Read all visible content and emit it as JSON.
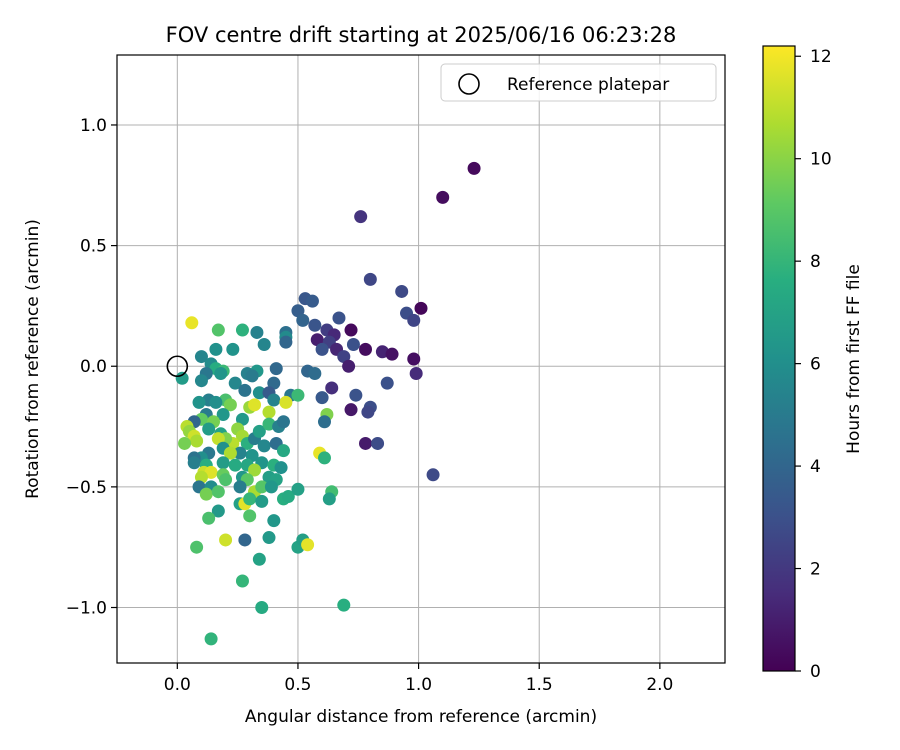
{
  "chart_data": {
    "type": "scatter",
    "title": "FOV centre drift starting at 2025/06/16 06:23:28",
    "xlabel": "Angular distance from reference (arcmin)",
    "ylabel": "Rotation from reference (arcmin)",
    "xlim": [
      -0.25,
      2.27
    ],
    "ylim": [
      -1.23,
      1.29
    ],
    "xticks": [
      0.0,
      0.5,
      1.0,
      1.5,
      2.0
    ],
    "xtick_labels": [
      "0.0",
      "0.5",
      "1.0",
      "1.5",
      "2.0"
    ],
    "yticks": [
      -1.0,
      -0.5,
      0.0,
      0.5,
      1.0
    ],
    "ytick_labels": [
      "−1.0",
      "−0.5",
      "0.0",
      "0.5",
      "1.0"
    ],
    "grid": true,
    "legend": {
      "position": "upper right",
      "entries": [
        {
          "label": "Reference platepar",
          "marker": "open-circle",
          "color": "#000000"
        }
      ]
    },
    "reference_point": {
      "x": 0.0,
      "y": 0.0
    },
    "colorbar": {
      "label": "Hours from first FF file",
      "colormap": "viridis",
      "range": [
        0,
        12.2
      ],
      "ticks": [
        0,
        2,
        4,
        6,
        8,
        10,
        12
      ],
      "tick_labels": [
        "0",
        "2",
        "4",
        "6",
        "8",
        "10",
        "12"
      ]
    },
    "points": [
      {
        "x": 1.23,
        "y": 0.82,
        "c": 0.3
      },
      {
        "x": 1.1,
        "y": 0.7,
        "c": 0.4
      },
      {
        "x": 0.76,
        "y": 0.62,
        "c": 1.8
      },
      {
        "x": 0.8,
        "y": 0.36,
        "c": 2.6
      },
      {
        "x": 0.93,
        "y": 0.31,
        "c": 2.7
      },
      {
        "x": 1.01,
        "y": 0.24,
        "c": 0.2
      },
      {
        "x": 0.95,
        "y": 0.22,
        "c": 2.9
      },
      {
        "x": 0.98,
        "y": 0.19,
        "c": 2.5
      },
      {
        "x": 0.72,
        "y": 0.15,
        "c": 0.3
      },
      {
        "x": 0.67,
        "y": 0.2,
        "c": 3.1
      },
      {
        "x": 0.53,
        "y": 0.28,
        "c": 3.3
      },
      {
        "x": 0.56,
        "y": 0.27,
        "c": 3.5
      },
      {
        "x": 0.5,
        "y": 0.23,
        "c": 3.6
      },
      {
        "x": 0.52,
        "y": 0.19,
        "c": 3.9
      },
      {
        "x": 0.57,
        "y": 0.17,
        "c": 3.2
      },
      {
        "x": 0.62,
        "y": 0.15,
        "c": 2.2
      },
      {
        "x": 0.65,
        "y": 0.13,
        "c": 1.4
      },
      {
        "x": 0.58,
        "y": 0.11,
        "c": 1.0
      },
      {
        "x": 0.63,
        "y": 0.1,
        "c": 2.3
      },
      {
        "x": 0.73,
        "y": 0.09,
        "c": 3.0
      },
      {
        "x": 0.66,
        "y": 0.07,
        "c": 1.3
      },
      {
        "x": 0.6,
        "y": 0.07,
        "c": 3.1
      },
      {
        "x": 0.69,
        "y": 0.04,
        "c": 2.4
      },
      {
        "x": 0.71,
        "y": 0.0,
        "c": 1.0
      },
      {
        "x": 0.78,
        "y": 0.07,
        "c": 0.4
      },
      {
        "x": 0.85,
        "y": 0.06,
        "c": 1.2
      },
      {
        "x": 0.89,
        "y": 0.05,
        "c": 0.6
      },
      {
        "x": 0.98,
        "y": 0.03,
        "c": 0.5
      },
      {
        "x": 0.99,
        "y": -0.03,
        "c": 1.5
      },
      {
        "x": 0.87,
        "y": -0.07,
        "c": 3.0
      },
      {
        "x": 0.64,
        "y": -0.09,
        "c": 1.6
      },
      {
        "x": 0.74,
        "y": -0.12,
        "c": 3.1
      },
      {
        "x": 0.6,
        "y": -0.13,
        "c": 3.4
      },
      {
        "x": 0.8,
        "y": -0.17,
        "c": 2.9
      },
      {
        "x": 0.72,
        "y": -0.18,
        "c": 0.8
      },
      {
        "x": 0.79,
        "y": -0.19,
        "c": 2.6
      },
      {
        "x": 0.62,
        "y": -0.2,
        "c": 9.8
      },
      {
        "x": 0.61,
        "y": -0.23,
        "c": 4.4
      },
      {
        "x": 0.78,
        "y": -0.32,
        "c": 0.9
      },
      {
        "x": 0.83,
        "y": -0.32,
        "c": 2.8
      },
      {
        "x": 1.06,
        "y": -0.45,
        "c": 2.7
      },
      {
        "x": 0.54,
        "y": -0.02,
        "c": 4.0
      },
      {
        "x": 0.57,
        "y": -0.03,
        "c": 4.3
      },
      {
        "x": 0.45,
        "y": 0.14,
        "c": 4.5
      },
      {
        "x": 0.45,
        "y": 0.12,
        "c": 5.8
      },
      {
        "x": 0.45,
        "y": 0.1,
        "c": 4.0
      },
      {
        "x": 0.36,
        "y": 0.09,
        "c": 5.5
      },
      {
        "x": 0.33,
        "y": 0.14,
        "c": 5.3
      },
      {
        "x": 0.27,
        "y": 0.15,
        "c": 7.8
      },
      {
        "x": 0.23,
        "y": 0.07,
        "c": 6.2
      },
      {
        "x": 0.17,
        "y": 0.15,
        "c": 8.8
      },
      {
        "x": 0.16,
        "y": 0.07,
        "c": 6.1
      },
      {
        "x": 0.06,
        "y": 0.18,
        "c": 11.8
      },
      {
        "x": 0.1,
        "y": 0.04,
        "c": 5.5
      },
      {
        "x": 0.14,
        "y": 0.01,
        "c": 5.8
      },
      {
        "x": 0.16,
        "y": -0.01,
        "c": 7.5
      },
      {
        "x": 0.19,
        "y": -0.02,
        "c": 8.2
      },
      {
        "x": 0.12,
        "y": -0.03,
        "c": 4.8
      },
      {
        "x": 0.18,
        "y": -0.03,
        "c": 6.3
      },
      {
        "x": 0.1,
        "y": -0.06,
        "c": 5.6
      },
      {
        "x": 0.02,
        "y": -0.05,
        "c": 6.6
      },
      {
        "x": 0.29,
        "y": -0.03,
        "c": 5.3
      },
      {
        "x": 0.33,
        "y": -0.02,
        "c": 6.4
      },
      {
        "x": 0.31,
        "y": -0.04,
        "c": 5.0
      },
      {
        "x": 0.24,
        "y": -0.07,
        "c": 5.6
      },
      {
        "x": 0.41,
        "y": -0.01,
        "c": 4.1
      },
      {
        "x": 0.4,
        "y": -0.07,
        "c": 4.2
      },
      {
        "x": 0.28,
        "y": -0.1,
        "c": 4.6
      },
      {
        "x": 0.34,
        "y": -0.11,
        "c": 6.0
      },
      {
        "x": 0.38,
        "y": -0.11,
        "c": 3.5
      },
      {
        "x": 0.47,
        "y": -0.12,
        "c": 4.8
      },
      {
        "x": 0.5,
        "y": -0.12,
        "c": 8.2
      },
      {
        "x": 0.2,
        "y": -0.14,
        "c": 8.6
      },
      {
        "x": 0.13,
        "y": -0.14,
        "c": 5.2
      },
      {
        "x": 0.09,
        "y": -0.15,
        "c": 6.2
      },
      {
        "x": 0.16,
        "y": -0.15,
        "c": 6.0
      },
      {
        "x": 0.22,
        "y": -0.16,
        "c": 9.6
      },
      {
        "x": 0.3,
        "y": -0.17,
        "c": 10.3
      },
      {
        "x": 0.4,
        "y": -0.14,
        "c": 5.4
      },
      {
        "x": 0.45,
        "y": -0.15,
        "c": 11.5
      },
      {
        "x": 0.38,
        "y": -0.19,
        "c": 10.8
      },
      {
        "x": 0.32,
        "y": -0.16,
        "c": 11.6
      },
      {
        "x": 0.27,
        "y": -0.22,
        "c": 6.5
      },
      {
        "x": 0.19,
        "y": -0.2,
        "c": 6.4
      },
      {
        "x": 0.12,
        "y": -0.2,
        "c": 5.0
      },
      {
        "x": 0.1,
        "y": -0.22,
        "c": 9.2
      },
      {
        "x": 0.15,
        "y": -0.23,
        "c": 9.6
      },
      {
        "x": 0.07,
        "y": -0.23,
        "c": 4.0
      },
      {
        "x": 0.04,
        "y": -0.25,
        "c": 10.9
      },
      {
        "x": 0.05,
        "y": -0.27,
        "c": 10.2
      },
      {
        "x": 0.07,
        "y": -0.29,
        "c": 11.3
      },
      {
        "x": 0.08,
        "y": -0.31,
        "c": 10.6
      },
      {
        "x": 0.03,
        "y": -0.32,
        "c": 9.6
      },
      {
        "x": 0.13,
        "y": -0.26,
        "c": 6.7
      },
      {
        "x": 0.18,
        "y": -0.28,
        "c": 7.0
      },
      {
        "x": 0.25,
        "y": -0.26,
        "c": 10.1
      },
      {
        "x": 0.27,
        "y": -0.29,
        "c": 10.5
      },
      {
        "x": 0.23,
        "y": -0.32,
        "c": 10.9
      },
      {
        "x": 0.2,
        "y": -0.3,
        "c": 9.8
      },
      {
        "x": 0.17,
        "y": -0.3,
        "c": 11.1
      },
      {
        "x": 0.19,
        "y": -0.34,
        "c": 6.1
      },
      {
        "x": 0.29,
        "y": -0.32,
        "c": 7.7
      },
      {
        "x": 0.32,
        "y": -0.3,
        "c": 5.1
      },
      {
        "x": 0.34,
        "y": -0.27,
        "c": 6.9
      },
      {
        "x": 0.38,
        "y": -0.24,
        "c": 8.1
      },
      {
        "x": 0.42,
        "y": -0.25,
        "c": 5.3
      },
      {
        "x": 0.44,
        "y": -0.23,
        "c": 4.7
      },
      {
        "x": 0.36,
        "y": -0.33,
        "c": 5.6
      },
      {
        "x": 0.41,
        "y": -0.32,
        "c": 4.4
      },
      {
        "x": 0.44,
        "y": -0.35,
        "c": 7.3
      },
      {
        "x": 0.31,
        "y": -0.37,
        "c": 6.2
      },
      {
        "x": 0.26,
        "y": -0.36,
        "c": 5.4
      },
      {
        "x": 0.22,
        "y": -0.36,
        "c": 10.7
      },
      {
        "x": 0.13,
        "y": -0.36,
        "c": 4.9
      },
      {
        "x": 0.1,
        "y": -0.38,
        "c": 6.0
      },
      {
        "x": 0.07,
        "y": -0.38,
        "c": 4.6
      },
      {
        "x": 0.07,
        "y": -0.4,
        "c": 5.2
      },
      {
        "x": 0.12,
        "y": -0.41,
        "c": 7.6
      },
      {
        "x": 0.19,
        "y": -0.4,
        "c": 6.7
      },
      {
        "x": 0.24,
        "y": -0.41,
        "c": 7.4
      },
      {
        "x": 0.29,
        "y": -0.41,
        "c": 7.2
      },
      {
        "x": 0.35,
        "y": -0.4,
        "c": 6.3
      },
      {
        "x": 0.4,
        "y": -0.41,
        "c": 7.7
      },
      {
        "x": 0.43,
        "y": -0.42,
        "c": 6.1
      },
      {
        "x": 0.32,
        "y": -0.43,
        "c": 10.4
      },
      {
        "x": 0.11,
        "y": -0.44,
        "c": 11.2
      },
      {
        "x": 0.14,
        "y": -0.44,
        "c": 11.6
      },
      {
        "x": 0.1,
        "y": -0.46,
        "c": 10.8
      },
      {
        "x": 0.19,
        "y": -0.45,
        "c": 9.3
      },
      {
        "x": 0.2,
        "y": -0.47,
        "c": 8.7
      },
      {
        "x": 0.27,
        "y": -0.46,
        "c": 6.4
      },
      {
        "x": 0.29,
        "y": -0.47,
        "c": 9.0
      },
      {
        "x": 0.38,
        "y": -0.46,
        "c": 6.8
      },
      {
        "x": 0.41,
        "y": -0.47,
        "c": 7.0
      },
      {
        "x": 0.09,
        "y": -0.5,
        "c": 4.7
      },
      {
        "x": 0.14,
        "y": -0.5,
        "c": 5.9
      },
      {
        "x": 0.26,
        "y": -0.5,
        "c": 5.1
      },
      {
        "x": 0.32,
        "y": -0.52,
        "c": 10.6
      },
      {
        "x": 0.35,
        "y": -0.5,
        "c": 8.9
      },
      {
        "x": 0.39,
        "y": -0.5,
        "c": 6.4
      },
      {
        "x": 0.12,
        "y": -0.53,
        "c": 9.6
      },
      {
        "x": 0.17,
        "y": -0.52,
        "c": 8.8
      },
      {
        "x": 0.44,
        "y": -0.55,
        "c": 7.6
      },
      {
        "x": 0.46,
        "y": -0.54,
        "c": 7.4
      },
      {
        "x": 0.5,
        "y": -0.51,
        "c": 6.9
      },
      {
        "x": 0.64,
        "y": -0.52,
        "c": 8.4
      },
      {
        "x": 0.63,
        "y": -0.55,
        "c": 6.8
      },
      {
        "x": 0.26,
        "y": -0.57,
        "c": 6.9
      },
      {
        "x": 0.28,
        "y": -0.57,
        "c": 11.7
      },
      {
        "x": 0.3,
        "y": -0.55,
        "c": 8.0
      },
      {
        "x": 0.35,
        "y": -0.56,
        "c": 6.6
      },
      {
        "x": 0.17,
        "y": -0.6,
        "c": 6.5
      },
      {
        "x": 0.13,
        "y": -0.63,
        "c": 8.6
      },
      {
        "x": 0.3,
        "y": -0.62,
        "c": 8.8
      },
      {
        "x": 0.4,
        "y": -0.64,
        "c": 6.4
      },
      {
        "x": 0.38,
        "y": -0.71,
        "c": 6.5
      },
      {
        "x": 0.2,
        "y": -0.72,
        "c": 11.3
      },
      {
        "x": 0.28,
        "y": -0.72,
        "c": 4.0
      },
      {
        "x": 0.08,
        "y": -0.75,
        "c": 8.7
      },
      {
        "x": 0.5,
        "y": -0.75,
        "c": 7.0
      },
      {
        "x": 0.52,
        "y": -0.72,
        "c": 6.8
      },
      {
        "x": 0.54,
        "y": -0.74,
        "c": 11.7
      },
      {
        "x": 0.34,
        "y": -0.8,
        "c": 7.0
      },
      {
        "x": 0.27,
        "y": -0.89,
        "c": 8.0
      },
      {
        "x": 0.35,
        "y": -1.0,
        "c": 7.4
      },
      {
        "x": 0.69,
        "y": -0.99,
        "c": 7.6
      },
      {
        "x": 0.14,
        "y": -1.13,
        "c": 7.9
      },
      {
        "x": 0.59,
        "y": -0.36,
        "c": 11.8
      },
      {
        "x": 0.61,
        "y": -0.38,
        "c": 7.8
      }
    ]
  }
}
